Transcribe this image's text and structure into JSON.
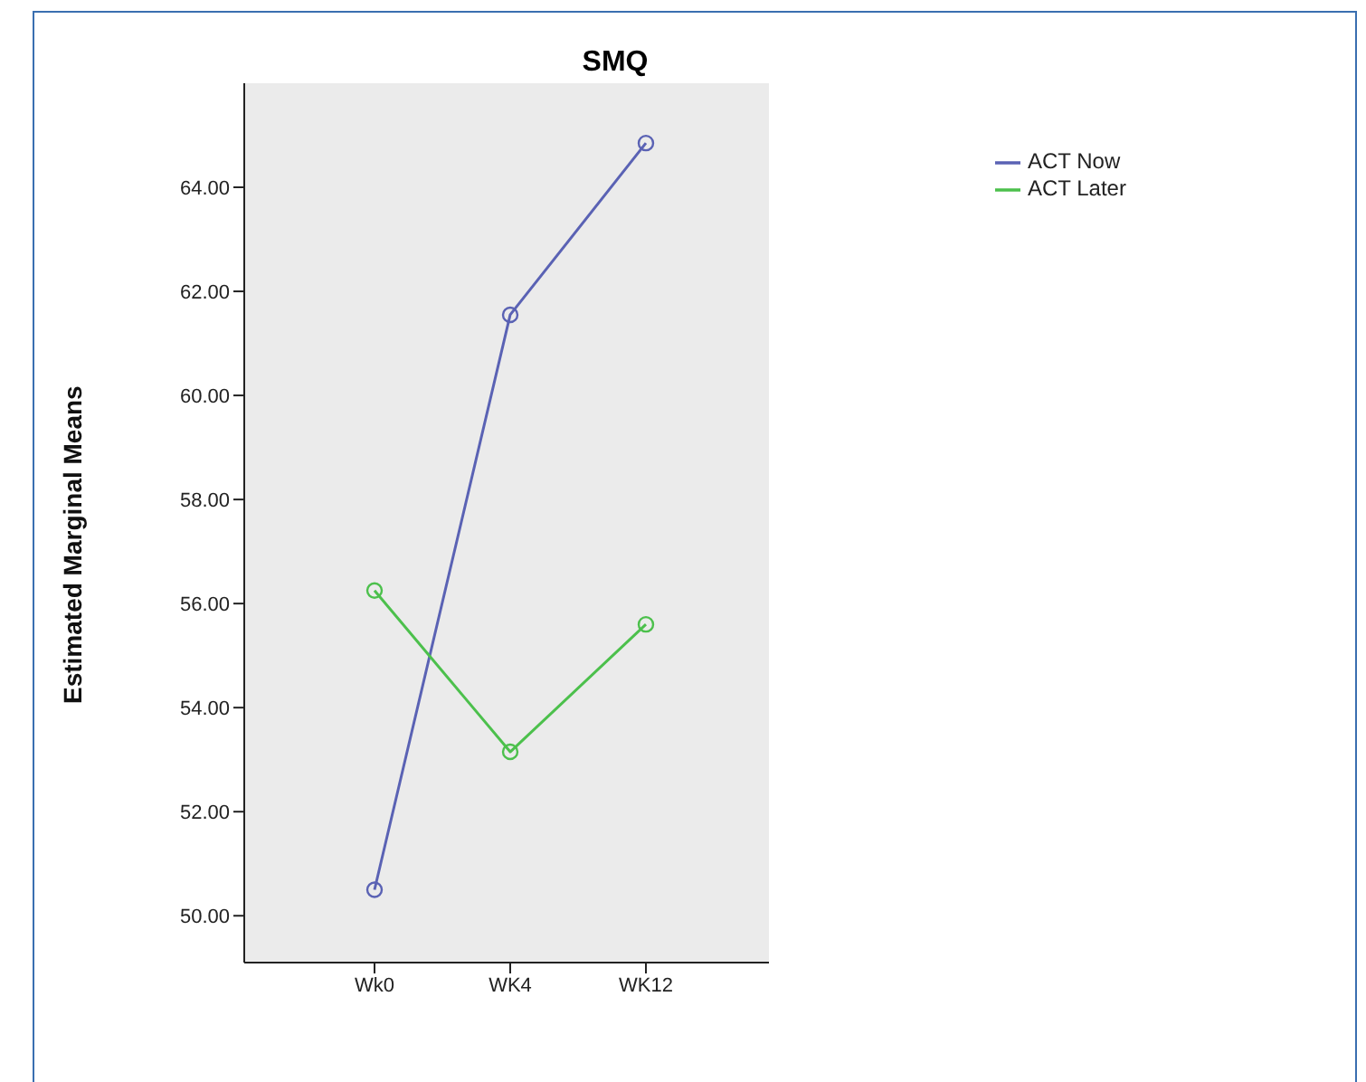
{
  "chart_data": {
    "type": "line",
    "title": "SMQ",
    "ylabel": "Estimated Marginal Means",
    "categories": [
      "Wk0",
      "WK4",
      "WK12"
    ],
    "series": [
      {
        "name": "ACT Now",
        "color": "#5a62b4",
        "values": [
          50.5,
          61.55,
          64.85
        ]
      },
      {
        "name": "ACT Later",
        "color": "#4cc04c",
        "values": [
          56.25,
          53.15,
          55.6
        ]
      }
    ],
    "ylim": [
      49.1,
      66.0
    ],
    "yticks": [
      {
        "value": 50,
        "label": "50.00"
      },
      {
        "value": 52,
        "label": "52.00"
      },
      {
        "value": 54,
        "label": "54.00"
      },
      {
        "value": 56,
        "label": "56.00"
      },
      {
        "value": 58,
        "label": "58.00"
      },
      {
        "value": 60,
        "label": "60.00"
      },
      {
        "value": 62,
        "label": "62.00"
      },
      {
        "value": 64,
        "label": "64.00"
      }
    ],
    "grid": false,
    "legend": "top right",
    "marker": "circle",
    "line_style": "solid"
  }
}
